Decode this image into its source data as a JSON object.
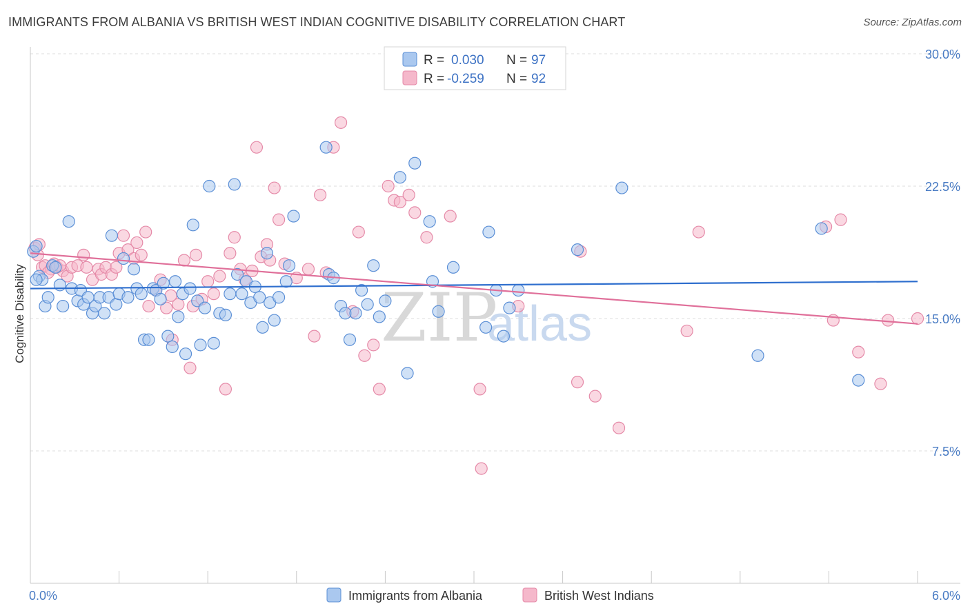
{
  "title": "IMMIGRANTS FROM ALBANIA VS BRITISH WEST INDIAN COGNITIVE DISABILITY CORRELATION CHART",
  "source": "Source: ZipAtlas.com",
  "watermark": {
    "zip": "ZIP",
    "atlas": "atlas"
  },
  "colors": {
    "blue_fill": "#aac8ef",
    "blue_stroke": "#5b8fd6",
    "blue_line": "#2f6fce",
    "pink_fill": "#f5b8cb",
    "pink_stroke": "#e58aa8",
    "pink_line": "#e0709a",
    "grid": "#dddddd",
    "tick_text": "#4a7cc4"
  },
  "legend": {
    "rows": [
      {
        "r_label": "R =",
        "r_value": "0.030",
        "n_label": "N =",
        "n_value": "97"
      },
      {
        "r_label": "R =",
        "r_value": "-0.259",
        "n_label": "N =",
        "n_value": "92"
      }
    ]
  },
  "chart_data": {
    "type": "scatter",
    "title": "IMMIGRANTS FROM ALBANIA VS BRITISH WEST INDIAN COGNITIVE DISABILITY CORRELATION CHART",
    "xlabel": "",
    "ylabel": "Cognitive Disability",
    "xlim": [
      0,
      6
    ],
    "ylim": [
      0,
      30
    ],
    "x_tick_labels": [
      "0.0%",
      "6.0%"
    ],
    "y_ticks": [
      7.5,
      15.0,
      22.5,
      30.0
    ],
    "y_tick_labels": [
      "7.5%",
      "15.0%",
      "22.5%",
      "30.0%"
    ],
    "grid": true,
    "legend_position": "top-center",
    "series": [
      {
        "name": "Immigrants from Albania",
        "color": "blue",
        "R": 0.03,
        "N": 97,
        "trend": {
          "x": [
            0,
            6
          ],
          "y": [
            16.7,
            17.1
          ]
        },
        "points": [
          [
            0.02,
            18.8
          ],
          [
            0.04,
            19.1
          ],
          [
            0.06,
            17.4
          ],
          [
            0.08,
            17.2
          ],
          [
            0.1,
            15.7
          ],
          [
            0.12,
            16.2
          ],
          [
            0.15,
            18.0
          ],
          [
            0.17,
            17.9
          ],
          [
            0.2,
            16.9
          ],
          [
            0.22,
            15.7
          ],
          [
            0.26,
            20.5
          ],
          [
            0.28,
            16.7
          ],
          [
            0.32,
            16.0
          ],
          [
            0.34,
            16.6
          ],
          [
            0.36,
            15.8
          ],
          [
            0.39,
            16.2
          ],
          [
            0.42,
            15.3
          ],
          [
            0.44,
            15.7
          ],
          [
            0.47,
            16.2
          ],
          [
            0.5,
            15.3
          ],
          [
            0.53,
            16.2
          ],
          [
            0.55,
            19.7
          ],
          [
            0.58,
            15.8
          ],
          [
            0.6,
            16.4
          ],
          [
            0.63,
            18.4
          ],
          [
            0.66,
            16.2
          ],
          [
            0.7,
            17.8
          ],
          [
            0.72,
            16.7
          ],
          [
            0.75,
            16.4
          ],
          [
            0.77,
            13.8
          ],
          [
            0.8,
            13.8
          ],
          [
            0.83,
            16.7
          ],
          [
            0.85,
            16.6
          ],
          [
            0.88,
            16.1
          ],
          [
            0.9,
            17.0
          ],
          [
            0.93,
            14.0
          ],
          [
            0.96,
            13.4
          ],
          [
            0.98,
            17.1
          ],
          [
            1.0,
            15.1
          ],
          [
            1.03,
            16.4
          ],
          [
            1.05,
            13.0
          ],
          [
            1.08,
            16.7
          ],
          [
            1.1,
            20.3
          ],
          [
            1.13,
            16.0
          ],
          [
            1.15,
            13.5
          ],
          [
            1.18,
            15.6
          ],
          [
            1.21,
            22.5
          ],
          [
            1.24,
            13.6
          ],
          [
            1.28,
            15.3
          ],
          [
            1.32,
            15.2
          ],
          [
            1.35,
            16.4
          ],
          [
            1.38,
            22.6
          ],
          [
            1.4,
            17.5
          ],
          [
            1.43,
            16.4
          ],
          [
            1.46,
            17.1
          ],
          [
            1.49,
            15.9
          ],
          [
            1.52,
            16.8
          ],
          [
            1.55,
            16.2
          ],
          [
            1.57,
            14.5
          ],
          [
            1.6,
            18.7
          ],
          [
            1.62,
            15.9
          ],
          [
            1.65,
            14.9
          ],
          [
            1.68,
            16.2
          ],
          [
            1.73,
            17.1
          ],
          [
            1.75,
            18.0
          ],
          [
            1.78,
            20.8
          ],
          [
            2.0,
            24.7
          ],
          [
            2.02,
            17.5
          ],
          [
            2.05,
            17.3
          ],
          [
            2.1,
            15.7
          ],
          [
            2.13,
            15.3
          ],
          [
            2.16,
            13.8
          ],
          [
            2.2,
            15.3
          ],
          [
            2.24,
            16.6
          ],
          [
            2.28,
            15.8
          ],
          [
            2.32,
            18.0
          ],
          [
            2.36,
            15.1
          ],
          [
            2.4,
            16.0
          ],
          [
            2.5,
            23.0
          ],
          [
            2.55,
            11.9
          ],
          [
            2.6,
            23.8
          ],
          [
            2.7,
            20.5
          ],
          [
            2.72,
            17.1
          ],
          [
            2.76,
            15.4
          ],
          [
            2.86,
            17.9
          ],
          [
            3.08,
            14.5
          ],
          [
            3.1,
            19.9
          ],
          [
            3.15,
            16.6
          ],
          [
            3.2,
            14.0
          ],
          [
            3.24,
            15.6
          ],
          [
            3.3,
            16.6
          ],
          [
            3.7,
            18.9
          ],
          [
            4.0,
            22.4
          ],
          [
            4.92,
            12.9
          ],
          [
            5.35,
            20.1
          ],
          [
            5.6,
            11.5
          ],
          [
            0.04,
            17.2
          ]
        ]
      },
      {
        "name": "British West Indians",
        "color": "pink",
        "R": -0.259,
        "N": 92,
        "trend": {
          "x": [
            0,
            6
          ],
          "y": [
            18.7,
            14.7
          ]
        },
        "points": [
          [
            0.03,
            19.0
          ],
          [
            0.05,
            18.6
          ],
          [
            0.08,
            17.9
          ],
          [
            0.1,
            18.0
          ],
          [
            0.14,
            17.8
          ],
          [
            0.16,
            18.1
          ],
          [
            0.18,
            17.9
          ],
          [
            0.22,
            17.7
          ],
          [
            0.25,
            17.4
          ],
          [
            0.28,
            17.9
          ],
          [
            0.32,
            18.0
          ],
          [
            0.36,
            18.6
          ],
          [
            0.38,
            17.9
          ],
          [
            0.42,
            17.2
          ],
          [
            0.46,
            17.8
          ],
          [
            0.48,
            17.5
          ],
          [
            0.51,
            17.9
          ],
          [
            0.55,
            17.5
          ],
          [
            0.58,
            17.9
          ],
          [
            0.6,
            18.7
          ],
          [
            0.63,
            19.7
          ],
          [
            0.66,
            18.9
          ],
          [
            0.7,
            18.4
          ],
          [
            0.72,
            19.3
          ],
          [
            0.75,
            18.6
          ],
          [
            0.78,
            19.9
          ],
          [
            0.8,
            15.7
          ],
          [
            0.85,
            16.6
          ],
          [
            0.88,
            17.2
          ],
          [
            0.92,
            15.6
          ],
          [
            0.96,
            13.8
          ],
          [
            1.0,
            15.8
          ],
          [
            1.04,
            18.3
          ],
          [
            1.08,
            12.2
          ],
          [
            1.12,
            18.6
          ],
          [
            1.16,
            16.1
          ],
          [
            1.2,
            17.1
          ],
          [
            1.24,
            16.4
          ],
          [
            1.28,
            17.4
          ],
          [
            1.32,
            11.0
          ],
          [
            1.35,
            18.7
          ],
          [
            1.38,
            19.6
          ],
          [
            1.42,
            17.8
          ],
          [
            1.45,
            17.2
          ],
          [
            1.5,
            17.7
          ],
          [
            1.53,
            24.7
          ],
          [
            1.56,
            18.5
          ],
          [
            1.6,
            19.2
          ],
          [
            1.62,
            18.3
          ],
          [
            1.65,
            22.4
          ],
          [
            1.68,
            20.6
          ],
          [
            1.72,
            18.1
          ],
          [
            1.8,
            17.3
          ],
          [
            1.88,
            17.8
          ],
          [
            1.92,
            14.0
          ],
          [
            1.96,
            22.0
          ],
          [
            2.0,
            17.6
          ],
          [
            2.05,
            24.7
          ],
          [
            2.1,
            26.1
          ],
          [
            2.18,
            15.4
          ],
          [
            2.22,
            19.9
          ],
          [
            2.26,
            12.9
          ],
          [
            2.32,
            13.5
          ],
          [
            2.36,
            11.0
          ],
          [
            2.42,
            22.5
          ],
          [
            2.46,
            21.7
          ],
          [
            2.5,
            21.6
          ],
          [
            2.56,
            22.0
          ],
          [
            2.68,
            19.6
          ],
          [
            2.84,
            20.8
          ],
          [
            3.04,
            11.0
          ],
          [
            3.05,
            6.5
          ],
          [
            3.3,
            15.7
          ],
          [
            3.7,
            11.4
          ],
          [
            3.72,
            18.8
          ],
          [
            3.82,
            10.6
          ],
          [
            3.98,
            8.8
          ],
          [
            4.44,
            14.3
          ],
          [
            4.52,
            19.9
          ],
          [
            5.38,
            20.2
          ],
          [
            5.43,
            14.9
          ],
          [
            5.48,
            20.6
          ],
          [
            5.6,
            13.1
          ],
          [
            5.75,
            11.3
          ],
          [
            5.8,
            14.9
          ],
          [
            6.0,
            15.0
          ],
          [
            0.06,
            19.2
          ],
          [
            0.12,
            17.6
          ],
          [
            0.2,
            18.0
          ],
          [
            0.95,
            16.3
          ],
          [
            1.1,
            15.7
          ],
          [
            2.6,
            21.0
          ]
        ]
      }
    ]
  }
}
